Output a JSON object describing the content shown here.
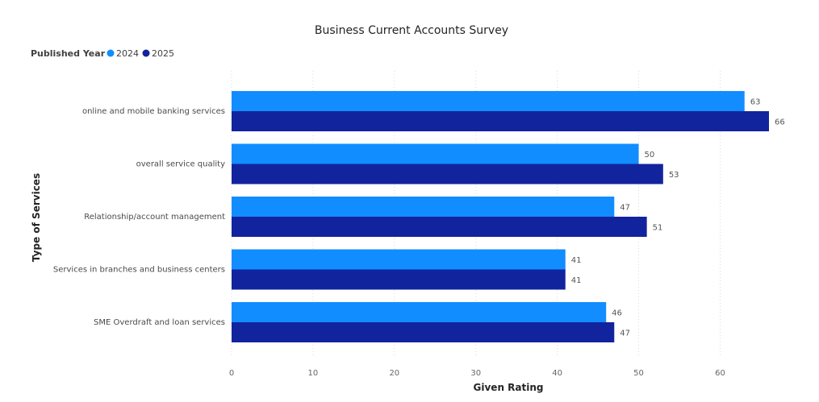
{
  "chart_data": {
    "type": "bar",
    "orientation": "horizontal",
    "title": "Business Current Accounts Survey",
    "legend_title": "Published Year",
    "legend_position": "top-left",
    "xlabel": "Given Rating",
    "ylabel": "Type of Services",
    "xlim": [
      0,
      66
    ],
    "xticks": [
      0,
      10,
      20,
      30,
      40,
      50,
      60
    ],
    "grid": true,
    "categories": [
      "online and mobile banking services",
      "overall service quality",
      "Relationship/account management",
      "Services in branches and business centers",
      "SME Overdraft and loan services"
    ],
    "series": [
      {
        "name": "2024",
        "color": "#118DFF",
        "values": [
          63,
          50,
          47,
          41,
          46
        ]
      },
      {
        "name": "2025",
        "color": "#12239E",
        "values": [
          66,
          53,
          51,
          41,
          47
        ]
      }
    ]
  }
}
